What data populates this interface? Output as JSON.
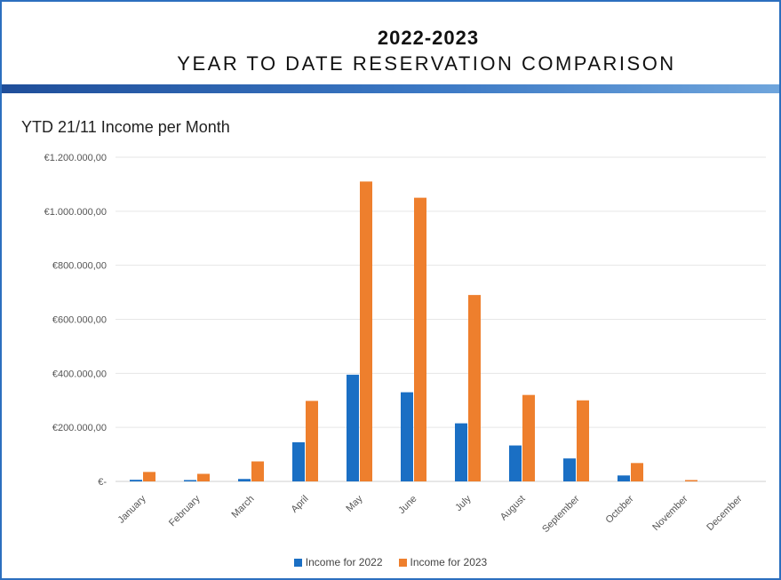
{
  "header": {
    "year_range": "2022-2023",
    "title": "YEAR TO DATE RESERVATION COMPARISON"
  },
  "colors": {
    "series_2022": "#1a6fc4",
    "series_2023": "#ee7f2d",
    "band": "#2c6fbf"
  },
  "chart_data": {
    "type": "bar",
    "title": "YTD 21/11 Income per Month",
    "xlabel": "",
    "ylabel": "",
    "ylim": [
      0,
      1200000
    ],
    "yticks": [
      0,
      200000,
      400000,
      600000,
      800000,
      1000000,
      1200000
    ],
    "ytick_labels": [
      "€-",
      "€200.000,00",
      "€400.000,00",
      "€600.000,00",
      "€800.000,00",
      "€1.000.000,00",
      "€1.200.000,00"
    ],
    "categories": [
      "January",
      "February",
      "March",
      "April",
      "May",
      "June",
      "July",
      "August",
      "September",
      "October",
      "November",
      "December"
    ],
    "series": [
      {
        "name": "Income for 2022",
        "values": [
          6000,
          5000,
          9000,
          145000,
          395000,
          330000,
          215000,
          133000,
          85000,
          22000,
          0,
          0
        ]
      },
      {
        "name": "Income for 2023",
        "values": [
          35000,
          28000,
          74000,
          298000,
          1110000,
          1050000,
          690000,
          320000,
          300000,
          68000,
          5000,
          0
        ]
      }
    ],
    "grid": true,
    "legend_position": "bottom-center"
  }
}
